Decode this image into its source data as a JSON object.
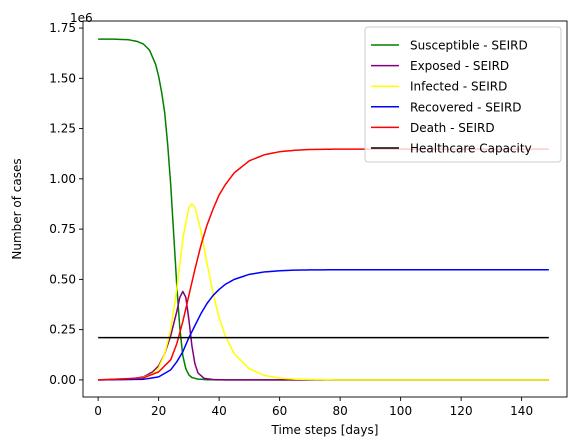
{
  "chart_data": {
    "type": "line",
    "title": "",
    "xlabel": "Time steps [days]",
    "ylabel": "Number of cases",
    "y_offset_label": "1e6",
    "xlim": [
      -5,
      155
    ],
    "ylim": [
      -0.085,
      1.785
    ],
    "x_ticks": [
      0,
      20,
      40,
      60,
      80,
      100,
      120,
      140
    ],
    "x_tick_labels": [
      "0",
      "20",
      "40",
      "60",
      "80",
      "100",
      "120",
      "140"
    ],
    "y_ticks": [
      0,
      0.25,
      0.5,
      0.75,
      1.0,
      1.25,
      1.5,
      1.75
    ],
    "y_tick_labels": [
      "0.00",
      "0.25",
      "0.50",
      "0.75",
      "1.00",
      "1.25",
      "1.50",
      "1.75"
    ],
    "grid": false,
    "legend_position": "top-right",
    "x_range": [
      0,
      149
    ],
    "series": [
      {
        "name": "Susceptible - SEIRD",
        "color": "#008000",
        "points": [
          [
            0,
            1.695
          ],
          [
            5,
            1.695
          ],
          [
            10,
            1.692
          ],
          [
            13,
            1.683
          ],
          [
            15,
            1.67
          ],
          [
            17,
            1.64
          ],
          [
            19,
            1.57
          ],
          [
            20,
            1.51
          ],
          [
            21,
            1.43
          ],
          [
            22,
            1.33
          ],
          [
            23,
            1.17
          ],
          [
            24,
            0.97
          ],
          [
            25,
            0.72
          ],
          [
            26,
            0.47
          ],
          [
            27,
            0.26
          ],
          [
            28,
            0.12
          ],
          [
            29,
            0.055
          ],
          [
            30,
            0.025
          ],
          [
            31,
            0.012
          ],
          [
            33,
            0.004
          ],
          [
            36,
            0.001
          ],
          [
            40,
            0.0
          ],
          [
            149,
            0.0
          ]
        ]
      },
      {
        "name": "Exposed - SEIRD",
        "color": "#800080",
        "points": [
          [
            0,
            0.0
          ],
          [
            10,
            0.003
          ],
          [
            15,
            0.015
          ],
          [
            18,
            0.04
          ],
          [
            20,
            0.07
          ],
          [
            22,
            0.13
          ],
          [
            24,
            0.22
          ],
          [
            26,
            0.34
          ],
          [
            27,
            0.41
          ],
          [
            28,
            0.44
          ],
          [
            29,
            0.41
          ],
          [
            30,
            0.3
          ],
          [
            31,
            0.17
          ],
          [
            32,
            0.08
          ],
          [
            33,
            0.035
          ],
          [
            35,
            0.008
          ],
          [
            38,
            0.002
          ],
          [
            42,
            0.0
          ],
          [
            149,
            0.0
          ]
        ]
      },
      {
        "name": "Infected - SEIRD",
        "color": "#ffff00",
        "points": [
          [
            0,
            0.0
          ],
          [
            10,
            0.003
          ],
          [
            15,
            0.012
          ],
          [
            18,
            0.03
          ],
          [
            20,
            0.06
          ],
          [
            22,
            0.13
          ],
          [
            24,
            0.25
          ],
          [
            26,
            0.45
          ],
          [
            28,
            0.7
          ],
          [
            30,
            0.86
          ],
          [
            31,
            0.875
          ],
          [
            32,
            0.86
          ],
          [
            34,
            0.74
          ],
          [
            36,
            0.58
          ],
          [
            38,
            0.43
          ],
          [
            40,
            0.31
          ],
          [
            42,
            0.22
          ],
          [
            45,
            0.13
          ],
          [
            50,
            0.055
          ],
          [
            55,
            0.022
          ],
          [
            60,
            0.009
          ],
          [
            65,
            0.004
          ],
          [
            70,
            0.002
          ],
          [
            80,
            0.0
          ],
          [
            149,
            0.0
          ]
        ]
      },
      {
        "name": "Recovered - SEIRD",
        "color": "#0000ff",
        "points": [
          [
            0,
            0.0
          ],
          [
            15,
            0.003
          ],
          [
            20,
            0.015
          ],
          [
            24,
            0.05
          ],
          [
            26,
            0.09
          ],
          [
            28,
            0.14
          ],
          [
            30,
            0.21
          ],
          [
            32,
            0.27
          ],
          [
            34,
            0.33
          ],
          [
            36,
            0.38
          ],
          [
            38,
            0.42
          ],
          [
            40,
            0.45
          ],
          [
            42,
            0.475
          ],
          [
            45,
            0.5
          ],
          [
            50,
            0.525
          ],
          [
            55,
            0.537
          ],
          [
            60,
            0.543
          ],
          [
            65,
            0.546
          ],
          [
            70,
            0.547
          ],
          [
            80,
            0.548
          ],
          [
            149,
            0.548
          ]
        ]
      },
      {
        "name": "Death - SEIRD",
        "color": "#ff0000",
        "points": [
          [
            0,
            0.0
          ],
          [
            15,
            0.01
          ],
          [
            20,
            0.04
          ],
          [
            24,
            0.1
          ],
          [
            26,
            0.18
          ],
          [
            28,
            0.29
          ],
          [
            30,
            0.42
          ],
          [
            32,
            0.55
          ],
          [
            34,
            0.67
          ],
          [
            36,
            0.77
          ],
          [
            38,
            0.85
          ],
          [
            40,
            0.92
          ],
          [
            42,
            0.97
          ],
          [
            45,
            1.03
          ],
          [
            50,
            1.09
          ],
          [
            55,
            1.12
          ],
          [
            60,
            1.135
          ],
          [
            65,
            1.142
          ],
          [
            70,
            1.146
          ],
          [
            80,
            1.148
          ],
          [
            149,
            1.148
          ]
        ]
      },
      {
        "name": "Healthcare Capacity",
        "color": "#000000",
        "points": [
          [
            0,
            0.21
          ],
          [
            149,
            0.21
          ]
        ]
      }
    ]
  }
}
